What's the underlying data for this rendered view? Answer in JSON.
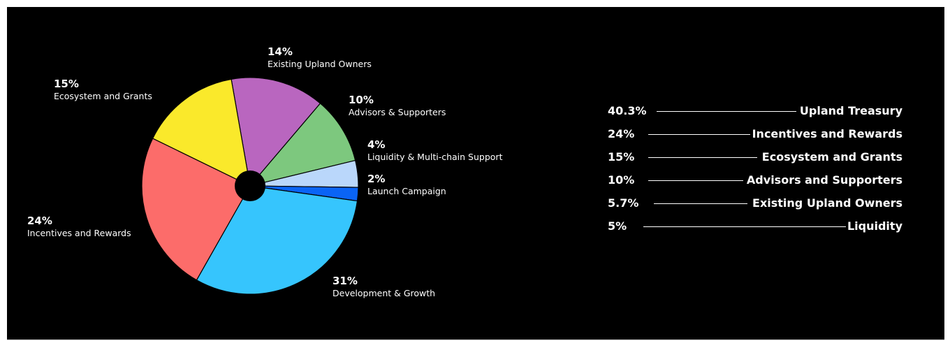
{
  "chart_data": [
    {
      "type": "pie",
      "slices": [
        {
          "label": "Existing Upland Owners",
          "pct_text": "14%",
          "value": 14,
          "color": "#b966bf"
        },
        {
          "label": "Advisors & Supporters",
          "pct_text": "10%",
          "value": 10,
          "color": "#7dc87e"
        },
        {
          "label": "Liquidity & Multi-chain Support",
          "pct_text": "4%",
          "value": 4,
          "color": "#bad7fb"
        },
        {
          "label": "Launch Campaign",
          "pct_text": "2%",
          "value": 2,
          "color": "#0a64f5"
        },
        {
          "label": "Development & Growth",
          "pct_text": "31%",
          "value": 31,
          "color": "#36c5fd"
        },
        {
          "label": "Incentives and Rewards",
          "pct_text": "24%",
          "value": 24,
          "color": "#fc6c6a"
        },
        {
          "label": "Ecosystem and Grants",
          "pct_text": "15%",
          "value": 15,
          "color": "#fae92b"
        }
      ]
    },
    {
      "type": "table",
      "rows": [
        {
          "pct_text": "40.3%",
          "label": "Upland Treasury"
        },
        {
          "pct_text": "24%",
          "label": "Incentives and Rewards"
        },
        {
          "pct_text": "15%",
          "label": "Ecosystem and Grants"
        },
        {
          "pct_text": "10%",
          "label": "Advisors and Supporters"
        },
        {
          "pct_text": "5.7%",
          "label": "Existing Upland Owners"
        },
        {
          "pct_text": "5%",
          "label": "Liquidity"
        }
      ]
    }
  ]
}
